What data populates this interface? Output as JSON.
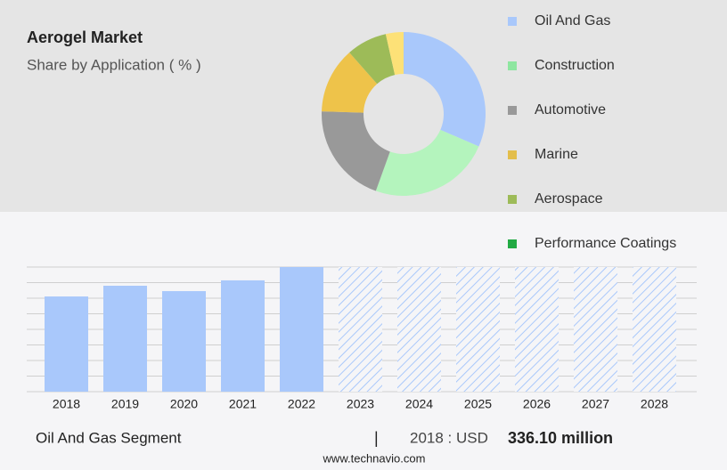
{
  "chart_data": [
    {
      "type": "donut",
      "title": "Aerogel Market",
      "subtitle": "Share by Application ( % )",
      "categories": [
        "Oil And Gas",
        "Construction",
        "Automotive",
        "Marine",
        "Aerospace",
        "Performance Coatings"
      ],
      "values": [
        31.5,
        24,
        20,
        13,
        8,
        3.5
      ],
      "colors": [
        "#a9c8fb",
        "#b4f4bd",
        "#999999",
        "#eec34a",
        "#9dbb58",
        "#fde177"
      ],
      "legend_colors": [
        "#a9c8fb",
        "#8ee6a0",
        "#999999",
        "#e3be4b",
        "#9dbb58",
        "#22aa44"
      ]
    },
    {
      "type": "bar",
      "categories": [
        "2018",
        "2019",
        "2020",
        "2021",
        "2022",
        "2023",
        "2024",
        "2025",
        "2026",
        "2027",
        "2028"
      ],
      "values": [
        336.1,
        374,
        355,
        393,
        440,
        null,
        null,
        null,
        null,
        null,
        null
      ],
      "color": "#a9c8fb",
      "ylim": [
        0,
        440
      ],
      "grid": true,
      "segment": "Oil And Gas Segment",
      "separator": "|",
      "year_label": "2018 : USD",
      "value_label": "336.10 million",
      "source": "www.technavio.com"
    }
  ]
}
